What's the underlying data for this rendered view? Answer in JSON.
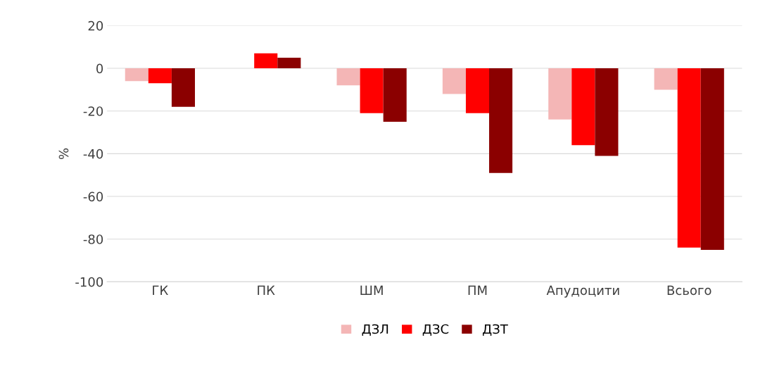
{
  "chart_data": {
    "type": "bar",
    "ylabel": "%",
    "categories": [
      "ГК",
      "ПК",
      "ШМ",
      "ПМ",
      "Апудоцити",
      "Всього"
    ],
    "series": [
      {
        "name": "ДЗЛ",
        "color": "#f4b6b6",
        "values": [
          -6,
          0,
          -8,
          -12,
          -24,
          -10
        ]
      },
      {
        "name": "ДЗС",
        "color": "#ff0000",
        "values": [
          -7,
          7,
          -21,
          -21,
          -36,
          -84
        ]
      },
      {
        "name": "ДЗТ",
        "color": "#8b0000",
        "values": [
          -18,
          5,
          -25,
          -49,
          -41,
          -85
        ]
      }
    ],
    "ylim": [
      -100,
      20
    ],
    "yticks": [
      -100,
      -80,
      -60,
      -40,
      -20,
      0,
      20
    ],
    "grid": "y",
    "legend": "bottom"
  }
}
